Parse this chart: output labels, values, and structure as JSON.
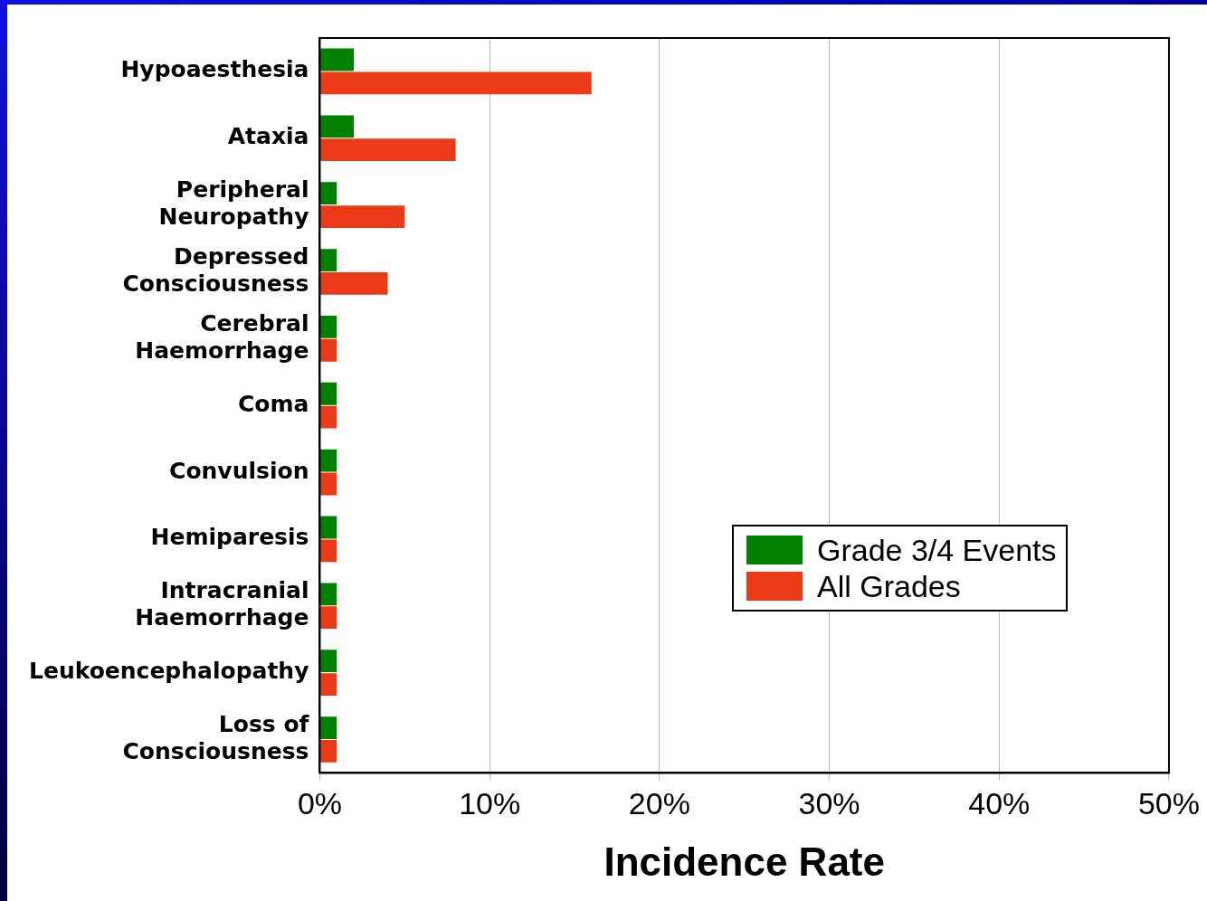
{
  "chart_data": {
    "type": "bar",
    "orientation": "horizontal",
    "xlabel": "Incidence Rate",
    "categories": [
      "Hypoaesthesia",
      "Ataxia",
      "Peripheral\nNeuropathy",
      "Depressed\nConsciousness",
      "Cerebral\nHaemorrhage",
      "Coma",
      "Convulsion",
      "Hemiparesis",
      "Intracranial\nHaemorrhage",
      "Leukoencephalopathy",
      "Loss of\nConsciousness"
    ],
    "series": [
      {
        "name": "Grade 3/4 Events",
        "color": "#008000",
        "values": [
          2,
          2,
          1,
          1,
          1,
          1,
          1,
          1,
          1,
          1,
          1
        ]
      },
      {
        "name": "All Grades",
        "color": "#ea3a18",
        "values": [
          16,
          8,
          5,
          4,
          1,
          1,
          1,
          1,
          1,
          1,
          1
        ]
      }
    ],
    "xlim": [
      0,
      50
    ],
    "xticks": [
      {
        "value": 0,
        "label": "0%"
      },
      {
        "value": 10,
        "label": "10%"
      },
      {
        "value": 20,
        "label": "20%"
      },
      {
        "value": 30,
        "label": "30%"
      },
      {
        "value": 40,
        "label": "40%"
      },
      {
        "value": 50,
        "label": "50%"
      }
    ],
    "grid": "x",
    "legend": "right"
  }
}
